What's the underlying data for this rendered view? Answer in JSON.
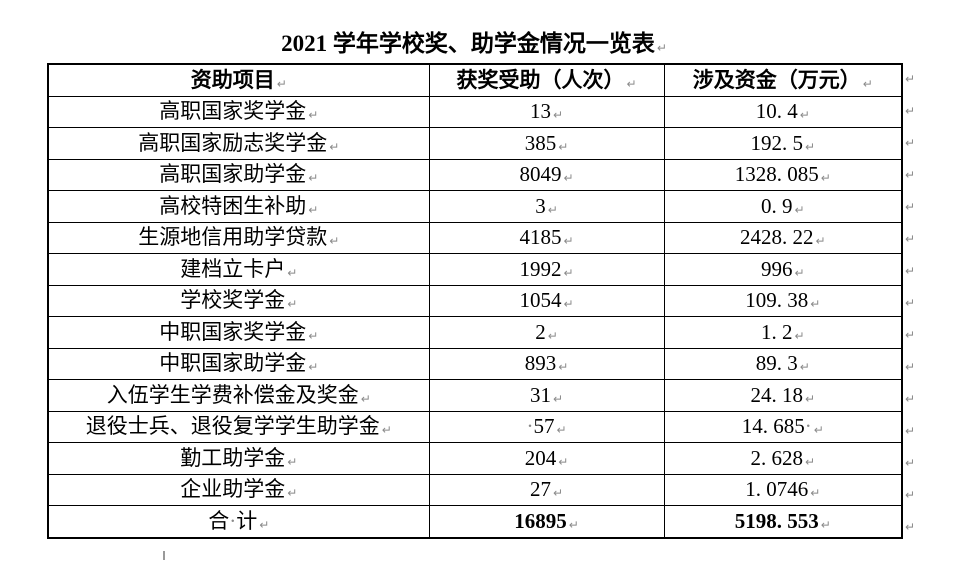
{
  "title": "2021 学年学校奖、助学金情况一览表",
  "table": {
    "columns": [
      "资助项目",
      "获奖受助（人次）",
      "涉及资金（万元）"
    ],
    "rows": [
      {
        "item": "高职国家奖学金",
        "count": "13",
        "amount": "10. 4"
      },
      {
        "item": "高职国家励志奖学金",
        "count": "385",
        "amount": "192. 5"
      },
      {
        "item": "高职国家助学金",
        "count": "8049",
        "amount": "1328. 085"
      },
      {
        "item": "高校特困生补助",
        "count": "3",
        "amount": "0. 9"
      },
      {
        "item": "生源地信用助学贷款",
        "count": "4185",
        "amount": "2428. 22"
      },
      {
        "item": "建档立卡户",
        "count": "1992",
        "amount": "996"
      },
      {
        "item": "学校奖学金",
        "count": "1054",
        "amount": "109. 38"
      },
      {
        "item": "中职国家奖学金",
        "count": "2",
        "amount": "1. 2"
      },
      {
        "item": "中职国家助学金",
        "count": "893",
        "amount": "89. 3"
      },
      {
        "item": "入伍学生学费补偿金及奖金",
        "count": "31",
        "amount": "24. 18"
      },
      {
        "item": "退役士兵、退役复学学生助学金",
        "count": "·57",
        "amount": "14. 685·"
      },
      {
        "item": "勤工助学金",
        "count": "204",
        "amount": "2. 628"
      },
      {
        "item": "企业助学金",
        "count": "27",
        "amount": "1. 0746"
      },
      {
        "item": "合·计",
        "count": "16895",
        "amount": "5198. 553",
        "bold_values": true
      }
    ]
  },
  "marks": {
    "end_of_cell_mark": "↵",
    "space_mark": "·"
  },
  "colors": {
    "text": "#000000",
    "border": "#000000",
    "formatting_mark": "#8a8a8a",
    "background": "#ffffff"
  },
  "layout_numbers": {
    "row_count_including_header": "15"
  }
}
